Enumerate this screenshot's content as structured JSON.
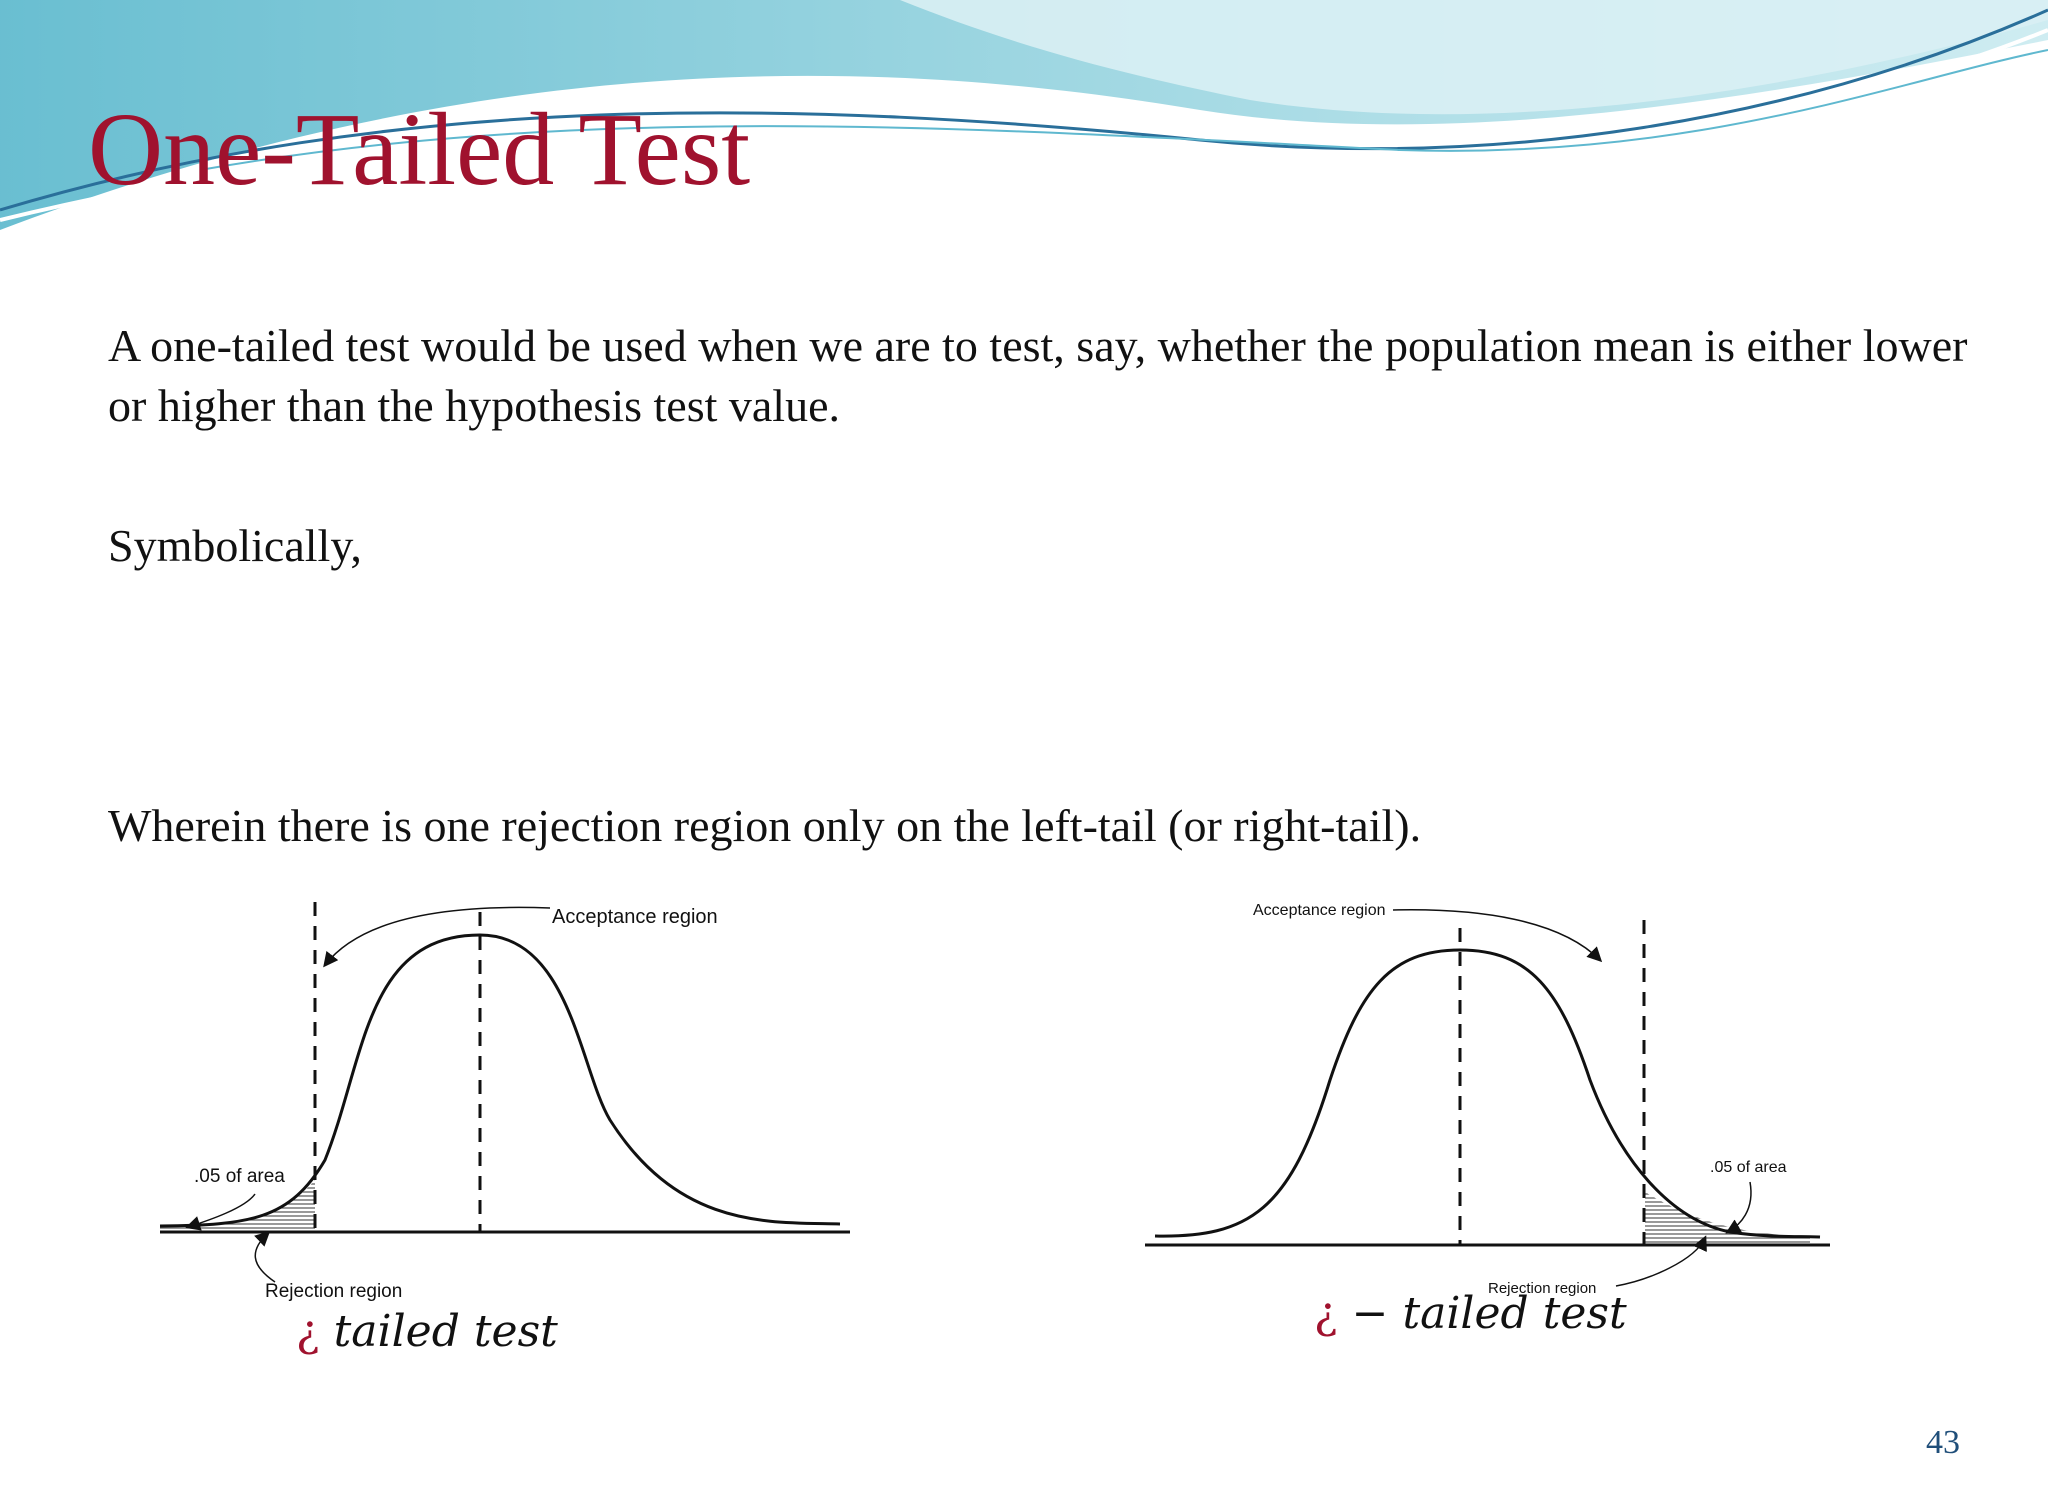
{
  "slide": {
    "title": "One-Tailed Test",
    "paragraph1": "A one-tailed test would be used when we are to test, say, whether the population mean is either lower or higher than the hypothesis test value.",
    "paragraph2": "Symbolically,",
    "paragraph3": "Wherein there is one rejection region only on the left-tail (or right-tail).",
    "page_number": "43"
  },
  "diagram_left": {
    "acceptance_label": "Acceptance region",
    "area_label": ".05 of area",
    "rejection_label": "Rejection region",
    "caption_symbol": "¿",
    "caption_text": "tailed test"
  },
  "diagram_right": {
    "acceptance_label": "Acceptance region",
    "area_label": ".05 of area",
    "rejection_label": "Rejection region",
    "caption_symbol": "¿",
    "caption_text": "− tailed test"
  },
  "colors": {
    "title": "#a0122e",
    "wave_light": "#bfe4ec",
    "wave_mid": "#7cc4d6",
    "wave_line": "#2a6f9a",
    "page_number": "#1f4e79"
  }
}
